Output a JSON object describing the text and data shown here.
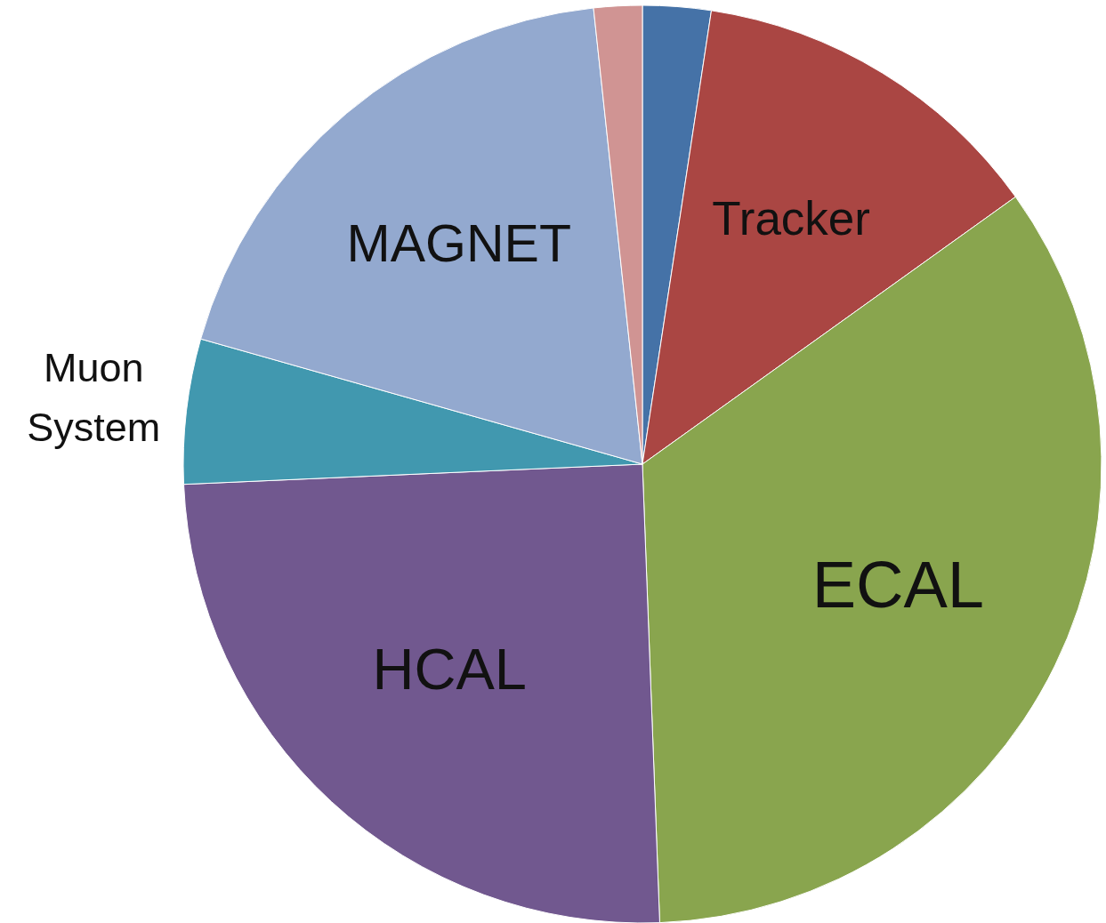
{
  "chart_data": {
    "type": "pie",
    "categories": [
      null,
      "Tracker",
      "ECAL",
      "HCAL",
      "Muon System",
      "MAGNET",
      null
    ],
    "values": [
      2.4,
      12.7,
      34.3,
      24.9,
      5.1,
      18.9,
      1.7
    ],
    "colors": [
      "#4572a7",
      "#aa4643",
      "#89a54e",
      "#71588f",
      "#4198af",
      "#93a9cf",
      "#d09493"
    ],
    "legend": false
  }
}
